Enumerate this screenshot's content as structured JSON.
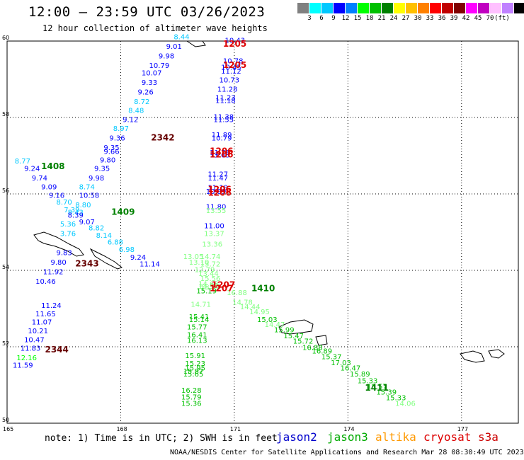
{
  "header": {
    "title": "12:00 — 23:59 UTC 03/26/2023",
    "subtitle": "12 hour collection of altimeter wave heights"
  },
  "legend": {
    "colors": [
      "#808080",
      "#00ffff",
      "#00c8ff",
      "#0000ff",
      "#0080ff",
      "#00ff00",
      "#00c000",
      "#008000",
      "#ffff00",
      "#ffc000",
      "#ff8000",
      "#ff0000",
      "#c00000",
      "#800000",
      "#ff00ff",
      "#c000c0",
      "#ffc0ff",
      "#c080ff",
      "#000000"
    ],
    "labels": [
      "3",
      "6",
      "9",
      "12",
      "15",
      "18",
      "21",
      "24",
      "27",
      "30",
      "33",
      "36",
      "39",
      "42",
      "45",
      "70",
      "(ft)"
    ]
  },
  "map": {
    "lat_labels": [
      "60",
      "58",
      "56",
      "54",
      "52",
      "50"
    ],
    "lon_labels": [
      "165",
      "168",
      "171",
      "174",
      "177"
    ]
  },
  "note": "note: 1) Time is in UTC; 2) SWH is in feet",
  "satellites": [
    {
      "name": "jason2",
      "color": "#0000cc"
    },
    {
      "name": "jason3",
      "color": "#00aa00"
    },
    {
      "name": "altika",
      "color": "#ff9900"
    },
    {
      "name": "cryosat",
      "color": "#dd0000"
    },
    {
      "name": "s3a",
      "color": "#cc0000"
    }
  ],
  "credit": "NOAA/NESDIS Center for Satellite Applications and Research   Mar 28 08:30:49 UTC 2023",
  "time_labels": [
    {
      "t": "1205",
      "lon": 170.7,
      "lat": 59.85,
      "c": "#dd0000"
    },
    {
      "t": "1205",
      "lon": 170.7,
      "lat": 59.3,
      "c": "#dd0000"
    },
    {
      "t": "1206",
      "lon": 170.35,
      "lat": 57.05,
      "c": "#dd0000"
    },
    {
      "t": "1206",
      "lon": 170.35,
      "lat": 56.95,
      "c": "#dd0000"
    },
    {
      "t": "1206",
      "lon": 170.3,
      "lat": 56.05,
      "c": "#dd0000"
    },
    {
      "t": "1206",
      "lon": 170.3,
      "lat": 55.95,
      "c": "#dd0000"
    },
    {
      "t": "1207",
      "lon": 170.4,
      "lat": 53.55,
      "c": "#dd0000"
    },
    {
      "t": "1207",
      "lon": 170.35,
      "lat": 53.45,
      "c": "#dd0000"
    },
    {
      "t": "1408",
      "lon": 165.9,
      "lat": 56.65,
      "c": "#008000"
    },
    {
      "t": "1409",
      "lon": 167.75,
      "lat": 55.45,
      "c": "#008000"
    },
    {
      "t": "1410",
      "lon": 171.45,
      "lat": 53.45,
      "c": "#008000"
    },
    {
      "t": "1411",
      "lon": 174.45,
      "lat": 50.85,
      "c": "#008000"
    },
    {
      "t": "2342",
      "lon": 168.8,
      "lat": 57.4,
      "c": "#660000"
    },
    {
      "t": "2343",
      "lon": 166.8,
      "lat": 54.1,
      "c": "#660000"
    },
    {
      "t": "2344",
      "lon": 166.0,
      "lat": 51.85,
      "c": "#660000"
    }
  ],
  "swh": [
    {
      "v": "8.44",
      "lon": 169.4,
      "lat": 60.05,
      "c": "#00c8ff"
    },
    {
      "v": "9.01",
      "lon": 169.2,
      "lat": 59.8,
      "c": "#0000ff"
    },
    {
      "v": "9.98",
      "lon": 169.0,
      "lat": 59.55,
      "c": "#0000ff"
    },
    {
      "v": "10.79",
      "lon": 168.75,
      "lat": 59.3,
      "c": "#0000ff"
    },
    {
      "v": "10.07",
      "lon": 168.55,
      "lat": 59.1,
      "c": "#0000ff"
    },
    {
      "v": "9.33",
      "lon": 168.55,
      "lat": 58.85,
      "c": "#0000ff"
    },
    {
      "v": "9.26",
      "lon": 168.45,
      "lat": 58.6,
      "c": "#0000ff"
    },
    {
      "v": "8.72",
      "lon": 168.35,
      "lat": 58.35,
      "c": "#00c8ff"
    },
    {
      "v": "8.48",
      "lon": 168.2,
      "lat": 58.12,
      "c": "#00c8ff"
    },
    {
      "v": "9.12",
      "lon": 168.05,
      "lat": 57.88,
      "c": "#0000ff"
    },
    {
      "v": "8.97",
      "lon": 167.8,
      "lat": 57.65,
      "c": "#00c8ff"
    },
    {
      "v": "9.36",
      "lon": 167.7,
      "lat": 57.4,
      "c": "#0000ff"
    },
    {
      "v": "9.35",
      "lon": 167.55,
      "lat": 57.15,
      "c": "#0000ff"
    },
    {
      "v": "9.66",
      "lon": 167.55,
      "lat": 57.05,
      "c": "#0000ff"
    },
    {
      "v": "9.80",
      "lon": 167.45,
      "lat": 56.82,
      "c": "#0000ff"
    },
    {
      "v": "9.35",
      "lon": 167.3,
      "lat": 56.6,
      "c": "#0000ff"
    },
    {
      "v": "9.98",
      "lon": 167.15,
      "lat": 56.35,
      "c": "#0000ff"
    },
    {
      "v": "8.74",
      "lon": 166.9,
      "lat": 56.12,
      "c": "#00c8ff"
    },
    {
      "v": "10.58",
      "lon": 166.9,
      "lat": 55.9,
      "c": "#0000ff"
    },
    {
      "v": "9.16",
      "lon": 166.1,
      "lat": 55.9,
      "c": "#0000ff"
    },
    {
      "v": "9.09",
      "lon": 165.9,
      "lat": 56.12,
      "c": "#0000ff"
    },
    {
      "v": "9.74",
      "lon": 165.65,
      "lat": 56.35,
      "c": "#0000ff"
    },
    {
      "v": "9.24",
      "lon": 165.45,
      "lat": 56.6,
      "c": "#0000ff"
    },
    {
      "v": "8.77",
      "lon": 165.2,
      "lat": 56.8,
      "c": "#00c8ff"
    },
    {
      "v": "8.70",
      "lon": 166.3,
      "lat": 55.72,
      "c": "#00c8ff"
    },
    {
      "v": "7.39",
      "lon": 166.5,
      "lat": 55.52,
      "c": "#00c8ff"
    },
    {
      "v": "8.80",
      "lon": 166.8,
      "lat": 55.65,
      "c": "#00c8ff"
    },
    {
      "v": "8.43",
      "lon": 166.6,
      "lat": 55.45,
      "c": "#00c8ff"
    },
    {
      "v": "8.39",
      "lon": 166.6,
      "lat": 55.38,
      "c": "#0000ff"
    },
    {
      "v": "9.07",
      "lon": 166.9,
      "lat": 55.2,
      "c": "#0000ff"
    },
    {
      "v": "5.36",
      "lon": 166.4,
      "lat": 55.15,
      "c": "#00c8ff"
    },
    {
      "v": "8.82",
      "lon": 167.15,
      "lat": 55.05,
      "c": "#00c8ff"
    },
    {
      "v": "8.14",
      "lon": 167.35,
      "lat": 54.85,
      "c": "#00c8ff"
    },
    {
      "v": "3.76",
      "lon": 166.4,
      "lat": 54.9,
      "c": "#00c8ff"
    },
    {
      "v": "6.88",
      "lon": 167.65,
      "lat": 54.68,
      "c": "#00c8ff"
    },
    {
      "v": "6.98",
      "lon": 167.95,
      "lat": 54.48,
      "c": "#00c8ff"
    },
    {
      "v": "9.24",
      "lon": 168.25,
      "lat": 54.28,
      "c": "#0000ff"
    },
    {
      "v": "11.14",
      "lon": 168.5,
      "lat": 54.1,
      "c": "#0000ff"
    },
    {
      "v": "9.83",
      "lon": 166.3,
      "lat": 54.4,
      "c": "#0000ff"
    },
    {
      "v": "9.80",
      "lon": 166.15,
      "lat": 54.15,
      "c": "#0000ff"
    },
    {
      "v": "11.92",
      "lon": 165.95,
      "lat": 53.9,
      "c": "#0000ff"
    },
    {
      "v": "10.46",
      "lon": 165.75,
      "lat": 53.65,
      "c": "#0000ff"
    },
    {
      "v": "11.24",
      "lon": 165.9,
      "lat": 53.02,
      "c": "#0000ff"
    },
    {
      "v": "11.65",
      "lon": 165.75,
      "lat": 52.8,
      "c": "#0000ff"
    },
    {
      "v": "11.07",
      "lon": 165.65,
      "lat": 52.58,
      "c": "#0000ff"
    },
    {
      "v": "10.21",
      "lon": 165.55,
      "lat": 52.35,
      "c": "#0000ff"
    },
    {
      "v": "10.47",
      "lon": 165.45,
      "lat": 52.12,
      "c": "#0000ff"
    },
    {
      "v": "11.83",
      "lon": 165.35,
      "lat": 51.9,
      "c": "#0000ff"
    },
    {
      "v": "12.16",
      "lon": 165.25,
      "lat": 51.65,
      "c": "#00ff00"
    },
    {
      "v": "11.59",
      "lon": 165.15,
      "lat": 51.45,
      "c": "#0000ff"
    },
    {
      "v": "10.43",
      "lon": 170.75,
      "lat": 59.95,
      "c": "#0000ff"
    },
    {
      "v": "10.78",
      "lon": 170.7,
      "lat": 59.42,
      "c": "#0000ff"
    },
    {
      "v": "10.45",
      "lon": 170.65,
      "lat": 59.25,
      "c": "#0000ff"
    },
    {
      "v": "11.12",
      "lon": 170.65,
      "lat": 59.15,
      "c": "#0000ff"
    },
    {
      "v": "10.73",
      "lon": 170.6,
      "lat": 58.92,
      "c": "#0000ff"
    },
    {
      "v": "11.28",
      "lon": 170.55,
      "lat": 58.68,
      "c": "#0000ff"
    },
    {
      "v": "11.23",
      "lon": 170.5,
      "lat": 58.45,
      "c": "#0000ff"
    },
    {
      "v": "11.18",
      "lon": 170.5,
      "lat": 58.38,
      "c": "#0000ff"
    },
    {
      "v": "11.38",
      "lon": 170.45,
      "lat": 57.95,
      "c": "#0000ff"
    },
    {
      "v": "11.55",
      "lon": 170.45,
      "lat": 57.88,
      "c": "#0000ff"
    },
    {
      "v": "11.89",
      "lon": 170.4,
      "lat": 57.48,
      "c": "#0000ff"
    },
    {
      "v": "10.79",
      "lon": 170.4,
      "lat": 57.4,
      "c": "#0000ff"
    },
    {
      "v": "11.76",
      "lon": 170.35,
      "lat": 57.02,
      "c": "#0000ff"
    },
    {
      "v": "11.63",
      "lon": 170.35,
      "lat": 56.95,
      "c": "#0000ff"
    },
    {
      "v": "11.27",
      "lon": 170.3,
      "lat": 56.45,
      "c": "#0000ff"
    },
    {
      "v": "11.47",
      "lon": 170.3,
      "lat": 56.35,
      "c": "#0000ff"
    },
    {
      "v": "11.19",
      "lon": 170.3,
      "lat": 56.1,
      "c": "#0000ff"
    },
    {
      "v": "10.89",
      "lon": 170.25,
      "lat": 56.0,
      "c": "#0000ff"
    },
    {
      "v": "11.80",
      "lon": 170.25,
      "lat": 55.6,
      "c": "#0000ff"
    },
    {
      "v": "13.55",
      "lon": 170.25,
      "lat": 55.5,
      "c": "#80ff80"
    },
    {
      "v": "11.00",
      "lon": 170.2,
      "lat": 55.1,
      "c": "#0000ff"
    },
    {
      "v": "13.37",
      "lon": 170.2,
      "lat": 54.9,
      "c": "#80ff80"
    },
    {
      "v": "13.36",
      "lon": 170.15,
      "lat": 54.62,
      "c": "#80ff80"
    },
    {
      "v": "14.74",
      "lon": 170.1,
      "lat": 54.3,
      "c": "#80ff80"
    },
    {
      "v": "13.05",
      "lon": 169.65,
      "lat": 54.3,
      "c": "#80ff80"
    },
    {
      "v": "13.10",
      "lon": 169.8,
      "lat": 54.15,
      "c": "#80ff80"
    },
    {
      "v": "13.72",
      "lon": 170.1,
      "lat": 54.1,
      "c": "#80ff80"
    },
    {
      "v": "12.79",
      "lon": 169.95,
      "lat": 53.95,
      "c": "#80ff80"
    },
    {
      "v": "13.44",
      "lon": 170.05,
      "lat": 53.85,
      "c": "#80ff80"
    },
    {
      "v": "15.56",
      "lon": 170.1,
      "lat": 53.72,
      "c": "#80ff80"
    },
    {
      "v": "14.68",
      "lon": 170.05,
      "lat": 53.58,
      "c": "#80ff80"
    },
    {
      "v": "15.87",
      "lon": 170.1,
      "lat": 53.5,
      "c": "#80ff80"
    },
    {
      "v": "14.94",
      "lon": 170.05,
      "lat": 53.52,
      "c": "#80ff80"
    },
    {
      "v": "15.19",
      "lon": 170.0,
      "lat": 53.4,
      "c": "#00c000"
    },
    {
      "v": "16.88",
      "lon": 170.8,
      "lat": 53.35,
      "c": "#80ff80"
    },
    {
      "v": "14.78",
      "lon": 170.95,
      "lat": 53.1,
      "c": "#80ff80"
    },
    {
      "v": "14.44",
      "lon": 171.15,
      "lat": 52.98,
      "c": "#80ff80"
    },
    {
      "v": "14.95",
      "lon": 171.4,
      "lat": 52.85,
      "c": "#80ff80"
    },
    {
      "v": "15.03",
      "lon": 171.6,
      "lat": 52.65,
      "c": "#00c000"
    },
    {
      "v": "14.47",
      "lon": 171.8,
      "lat": 52.52,
      "c": "#80ff80"
    },
    {
      "v": "15.99",
      "lon": 172.05,
      "lat": 52.38,
      "c": "#00c000"
    },
    {
      "v": "15.47",
      "lon": 172.3,
      "lat": 52.22,
      "c": "#00c000"
    },
    {
      "v": "15.72",
      "lon": 172.55,
      "lat": 52.08,
      "c": "#00c000"
    },
    {
      "v": "16.88",
      "lon": 172.8,
      "lat": 51.92,
      "c": "#00c000"
    },
    {
      "v": "16.89",
      "lon": 173.05,
      "lat": 51.82,
      "c": "#00c000"
    },
    {
      "v": "15.37",
      "lon": 173.3,
      "lat": 51.68,
      "c": "#00c000"
    },
    {
      "v": "17.03",
      "lon": 173.55,
      "lat": 51.52,
      "c": "#00c000"
    },
    {
      "v": "16.47",
      "lon": 173.8,
      "lat": 51.38,
      "c": "#00c000"
    },
    {
      "v": "15.89",
      "lon": 174.05,
      "lat": 51.22,
      "c": "#00c000"
    },
    {
      "v": "15.33",
      "lon": 174.25,
      "lat": 51.05,
      "c": "#00c000"
    },
    {
      "v": "15.57",
      "lon": 174.5,
      "lat": 50.9,
      "c": "#00c000"
    },
    {
      "v": "15.39",
      "lon": 174.75,
      "lat": 50.75,
      "c": "#00c000"
    },
    {
      "v": "15.33",
      "lon": 175.0,
      "lat": 50.6,
      "c": "#00c000"
    },
    {
      "v": "14.06",
      "lon": 175.25,
      "lat": 50.45,
      "c": "#80ff80"
    },
    {
      "v": "14.71",
      "lon": 169.85,
      "lat": 53.05,
      "c": "#80ff80"
    },
    {
      "v": "15.41",
      "lon": 169.8,
      "lat": 52.72,
      "c": "#00c000"
    },
    {
      "v": "15.14",
      "lon": 169.8,
      "lat": 52.65,
      "c": "#00c000"
    },
    {
      "v": "15.77",
      "lon": 169.75,
      "lat": 52.45,
      "c": "#00c000"
    },
    {
      "v": "16.41",
      "lon": 169.75,
      "lat": 52.25,
      "c": "#00c000"
    },
    {
      "v": "16.13",
      "lon": 169.75,
      "lat": 52.1,
      "c": "#00c000"
    },
    {
      "v": "15.91",
      "lon": 169.7,
      "lat": 51.7,
      "c": "#00c000"
    },
    {
      "v": "15.23",
      "lon": 169.7,
      "lat": 51.5,
      "c": "#00c000"
    },
    {
      "v": "15.95",
      "lon": 169.7,
      "lat": 51.38,
      "c": "#00c000"
    },
    {
      "v": "15.87",
      "lon": 169.65,
      "lat": 51.3,
      "c": "#00c000"
    },
    {
      "v": "15.65",
      "lon": 169.65,
      "lat": 51.22,
      "c": "#00c000"
    },
    {
      "v": "16.28",
      "lon": 169.6,
      "lat": 50.8,
      "c": "#00c000"
    },
    {
      "v": "15.79",
      "lon": 169.6,
      "lat": 50.62,
      "c": "#00c000"
    },
    {
      "v": "15.36",
      "lon": 169.6,
      "lat": 50.45,
      "c": "#00c000"
    }
  ]
}
